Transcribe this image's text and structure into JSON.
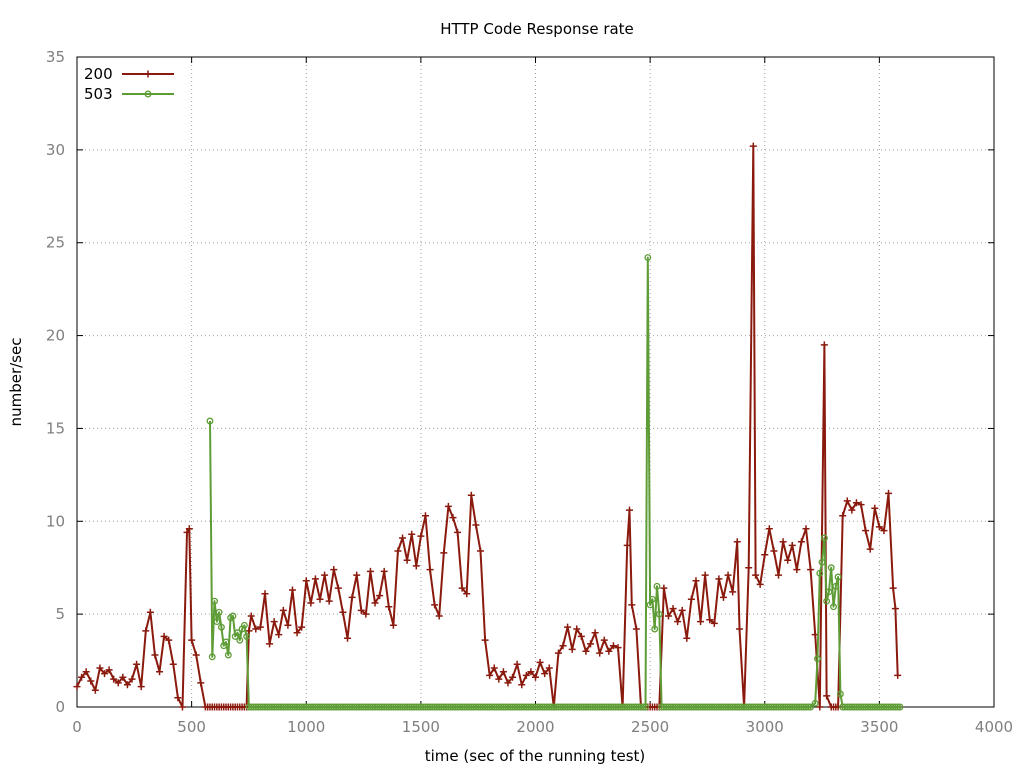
{
  "chart_data": {
    "type": "line",
    "title": "HTTP Code Response rate",
    "xlabel": "time (sec of the running test)",
    "ylabel": "number/sec",
    "xlim": [
      0,
      4000
    ],
    "ylim": [
      0,
      35
    ],
    "xticks": [
      0,
      500,
      1000,
      1500,
      2000,
      2500,
      3000,
      3500,
      4000
    ],
    "yticks": [
      0,
      5,
      10,
      15,
      20,
      25,
      30,
      35
    ],
    "grid": true,
    "legend_position": "top-left",
    "series": [
      {
        "name": "200",
        "color": "#8b1a0e",
        "marker": "plus",
        "points": [
          [
            0,
            1.1
          ],
          [
            20,
            1.6
          ],
          [
            40,
            1.9
          ],
          [
            60,
            1.4
          ],
          [
            80,
            0.9
          ],
          [
            100,
            2.1
          ],
          [
            120,
            1.8
          ],
          [
            140,
            2.0
          ],
          [
            160,
            1.5
          ],
          [
            180,
            1.3
          ],
          [
            200,
            1.6
          ],
          [
            220,
            1.2
          ],
          [
            240,
            1.5
          ],
          [
            260,
            2.3
          ],
          [
            280,
            1.1
          ],
          [
            300,
            4.1
          ],
          [
            320,
            5.1
          ],
          [
            340,
            2.8
          ],
          [
            360,
            1.9
          ],
          [
            380,
            3.8
          ],
          [
            400,
            3.6
          ],
          [
            420,
            2.3
          ],
          [
            440,
            0.5
          ],
          [
            460,
            0.0
          ],
          [
            480,
            9.4
          ],
          [
            490,
            9.6
          ],
          [
            500,
            3.6
          ],
          [
            520,
            2.8
          ],
          [
            540,
            1.3
          ],
          [
            560,
            0.0
          ],
          [
            600,
            0.0
          ],
          [
            650,
            0.0
          ],
          [
            700,
            0.0
          ],
          [
            740,
            0.0
          ],
          [
            750,
            4.1
          ],
          [
            760,
            4.9
          ],
          [
            780,
            4.2
          ],
          [
            800,
            4.3
          ],
          [
            820,
            6.1
          ],
          [
            840,
            3.4
          ],
          [
            860,
            4.6
          ],
          [
            880,
            3.9
          ],
          [
            900,
            5.2
          ],
          [
            920,
            4.4
          ],
          [
            940,
            6.3
          ],
          [
            960,
            4.0
          ],
          [
            980,
            4.3
          ],
          [
            1000,
            6.8
          ],
          [
            1020,
            5.6
          ],
          [
            1040,
            6.9
          ],
          [
            1060,
            5.8
          ],
          [
            1080,
            7.1
          ],
          [
            1100,
            5.7
          ],
          [
            1120,
            7.4
          ],
          [
            1140,
            6.4
          ],
          [
            1160,
            5.1
          ],
          [
            1180,
            3.7
          ],
          [
            1200,
            5.9
          ],
          [
            1220,
            7.1
          ],
          [
            1240,
            5.2
          ],
          [
            1260,
            5.0
          ],
          [
            1280,
            7.3
          ],
          [
            1300,
            5.6
          ],
          [
            1320,
            6.0
          ],
          [
            1340,
            7.3
          ],
          [
            1360,
            5.4
          ],
          [
            1380,
            4.4
          ],
          [
            1400,
            8.4
          ],
          [
            1420,
            9.1
          ],
          [
            1440,
            7.9
          ],
          [
            1460,
            9.3
          ],
          [
            1480,
            7.6
          ],
          [
            1500,
            9.2
          ],
          [
            1520,
            10.3
          ],
          [
            1540,
            7.4
          ],
          [
            1560,
            5.5
          ],
          [
            1580,
            4.9
          ],
          [
            1600,
            8.3
          ],
          [
            1620,
            10.8
          ],
          [
            1640,
            10.2
          ],
          [
            1660,
            9.4
          ],
          [
            1680,
            6.4
          ],
          [
            1700,
            6.1
          ],
          [
            1720,
            11.4
          ],
          [
            1740,
            9.8
          ],
          [
            1760,
            8.4
          ],
          [
            1780,
            3.6
          ],
          [
            1800,
            1.7
          ],
          [
            1820,
            2.1
          ],
          [
            1840,
            1.5
          ],
          [
            1860,
            1.9
          ],
          [
            1880,
            1.3
          ],
          [
            1900,
            1.6
          ],
          [
            1920,
            2.3
          ],
          [
            1940,
            1.2
          ],
          [
            1960,
            1.7
          ],
          [
            1980,
            1.9
          ],
          [
            2000,
            1.6
          ],
          [
            2020,
            2.4
          ],
          [
            2040,
            1.8
          ],
          [
            2060,
            2.1
          ],
          [
            2080,
            0.0
          ],
          [
            2100,
            2.9
          ],
          [
            2120,
            3.3
          ],
          [
            2140,
            4.3
          ],
          [
            2160,
            3.1
          ],
          [
            2180,
            4.2
          ],
          [
            2200,
            3.8
          ],
          [
            2220,
            3.0
          ],
          [
            2240,
            3.4
          ],
          [
            2260,
            4.0
          ],
          [
            2280,
            2.9
          ],
          [
            2300,
            3.6
          ],
          [
            2320,
            3.0
          ],
          [
            2340,
            3.3
          ],
          [
            2360,
            3.2
          ],
          [
            2380,
            0.0
          ],
          [
            2400,
            8.7
          ],
          [
            2410,
            10.6
          ],
          [
            2420,
            5.5
          ],
          [
            2440,
            4.2
          ],
          [
            2460,
            0.0
          ],
          [
            2480,
            0.0
          ],
          [
            2540,
            0.0
          ],
          [
            2560,
            6.4
          ],
          [
            2580,
            4.9
          ],
          [
            2600,
            5.3
          ],
          [
            2620,
            4.6
          ],
          [
            2640,
            5.2
          ],
          [
            2660,
            3.7
          ],
          [
            2680,
            5.8
          ],
          [
            2700,
            6.8
          ],
          [
            2720,
            4.6
          ],
          [
            2740,
            7.1
          ],
          [
            2760,
            4.7
          ],
          [
            2780,
            4.5
          ],
          [
            2800,
            6.9
          ],
          [
            2820,
            5.9
          ],
          [
            2840,
            7.1
          ],
          [
            2860,
            6.2
          ],
          [
            2880,
            8.9
          ],
          [
            2890,
            4.2
          ],
          [
            2910,
            0.0
          ],
          [
            2930,
            7.5
          ],
          [
            2950,
            30.2
          ],
          [
            2960,
            7.1
          ],
          [
            2980,
            6.6
          ],
          [
            3000,
            8.2
          ],
          [
            3020,
            9.6
          ],
          [
            3040,
            8.4
          ],
          [
            3060,
            7.1
          ],
          [
            3080,
            8.9
          ],
          [
            3100,
            7.9
          ],
          [
            3120,
            8.7
          ],
          [
            3140,
            7.4
          ],
          [
            3160,
            8.9
          ],
          [
            3180,
            9.6
          ],
          [
            3200,
            7.4
          ],
          [
            3220,
            3.9
          ],
          [
            3240,
            0.0
          ],
          [
            3260,
            19.5
          ],
          [
            3270,
            0.6
          ],
          [
            3290,
            0.0
          ],
          [
            3320,
            0.0
          ],
          [
            3340,
            10.3
          ],
          [
            3360,
            11.1
          ],
          [
            3380,
            10.6
          ],
          [
            3400,
            11.0
          ],
          [
            3420,
            10.9
          ],
          [
            3440,
            9.5
          ],
          [
            3460,
            8.5
          ],
          [
            3480,
            10.7
          ],
          [
            3500,
            9.7
          ],
          [
            3520,
            9.5
          ],
          [
            3540,
            11.5
          ],
          [
            3560,
            6.4
          ],
          [
            3570,
            5.3
          ],
          [
            3580,
            1.7
          ]
        ]
      },
      {
        "name": "503",
        "color": "#5e9c36",
        "marker": "circle",
        "points": [
          [
            580,
            15.4
          ],
          [
            590,
            2.7
          ],
          [
            600,
            5.7
          ],
          [
            610,
            4.6
          ],
          [
            620,
            5.1
          ],
          [
            630,
            4.3
          ],
          [
            640,
            3.3
          ],
          [
            650,
            3.5
          ],
          [
            660,
            2.8
          ],
          [
            670,
            4.8
          ],
          [
            680,
            4.9
          ],
          [
            690,
            3.8
          ],
          [
            700,
            4.0
          ],
          [
            710,
            3.6
          ],
          [
            720,
            4.2
          ],
          [
            730,
            4.4
          ],
          [
            740,
            3.8
          ],
          [
            750,
            0.0
          ],
          [
            800,
            0.0
          ],
          [
            1000,
            0.0
          ],
          [
            1500,
            0.0
          ],
          [
            2000,
            0.0
          ],
          [
            2480,
            0.0
          ],
          [
            2490,
            24.2
          ],
          [
            2500,
            5.5
          ],
          [
            2510,
            5.8
          ],
          [
            2520,
            4.2
          ],
          [
            2530,
            6.5
          ],
          [
            2540,
            5.0
          ],
          [
            2550,
            0.0
          ],
          [
            2800,
            0.0
          ],
          [
            3200,
            0.0
          ],
          [
            3220,
            0.2
          ],
          [
            3230,
            2.6
          ],
          [
            3240,
            7.2
          ],
          [
            3250,
            7.8
          ],
          [
            3260,
            9.1
          ],
          [
            3270,
            5.7
          ],
          [
            3280,
            6.2
          ],
          [
            3290,
            7.5
          ],
          [
            3300,
            5.4
          ],
          [
            3310,
            6.5
          ],
          [
            3320,
            7.0
          ],
          [
            3330,
            0.7
          ],
          [
            3340,
            0.0
          ],
          [
            3400,
            0.0
          ],
          [
            3500,
            0.0
          ],
          [
            3590,
            0.0
          ]
        ]
      }
    ]
  }
}
